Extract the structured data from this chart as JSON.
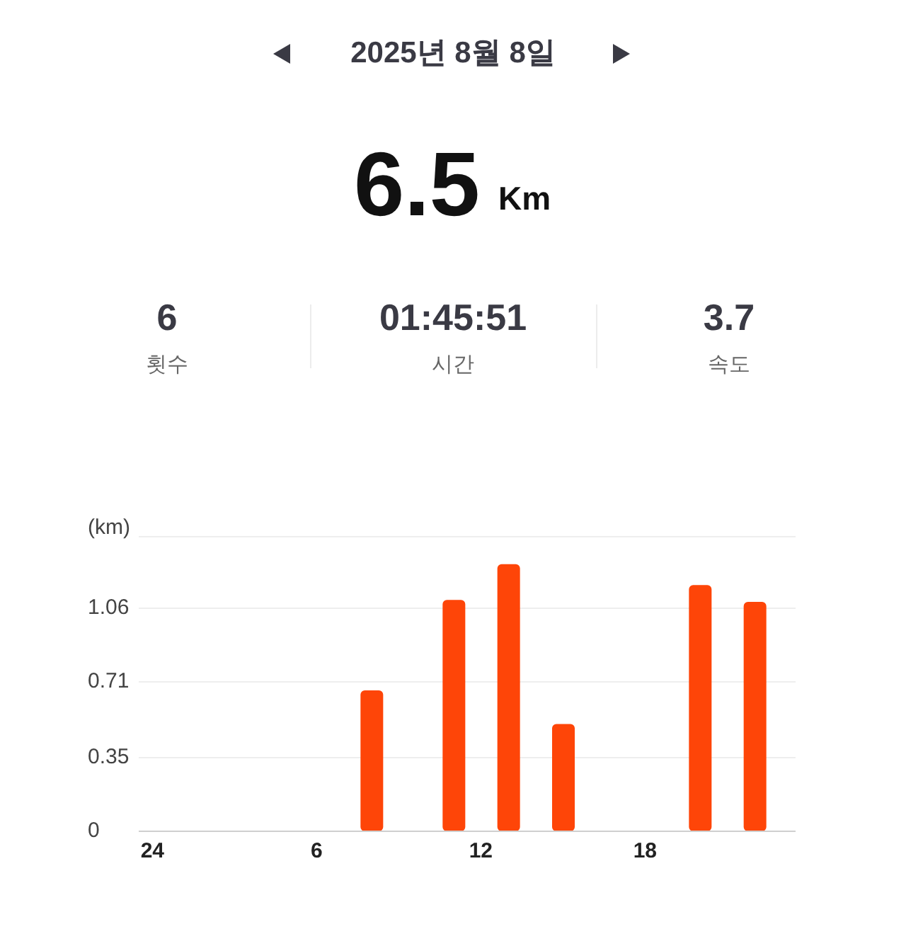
{
  "chart_data": {
    "type": "bar",
    "title": "2025년 8월 8일",
    "ylabel": "(km)",
    "annotations": [
      "6.5",
      "Km",
      "6",
      "횟수",
      "01:45:51",
      "시간",
      "3.7",
      "속도"
    ],
    "categories": [
      "24",
      null,
      null,
      null,
      null,
      null,
      "6",
      null,
      null,
      null,
      null,
      null,
      "12",
      null,
      null,
      null,
      null,
      null,
      "18",
      null,
      null,
      null,
      null,
      null
    ],
    "values": [
      null,
      null,
      null,
      null,
      null,
      null,
      null,
      null,
      0.67,
      null,
      null,
      1.1,
      null,
      1.27,
      null,
      0.51,
      null,
      null,
      null,
      null,
      1.17,
      null,
      1.09,
      null
    ],
    "color": "#fe4508",
    "ylim": [
      0,
      1.4
    ],
    "yticks": [
      0,
      0.35,
      0.71,
      1.06
    ],
    "grid": "y"
  }
}
